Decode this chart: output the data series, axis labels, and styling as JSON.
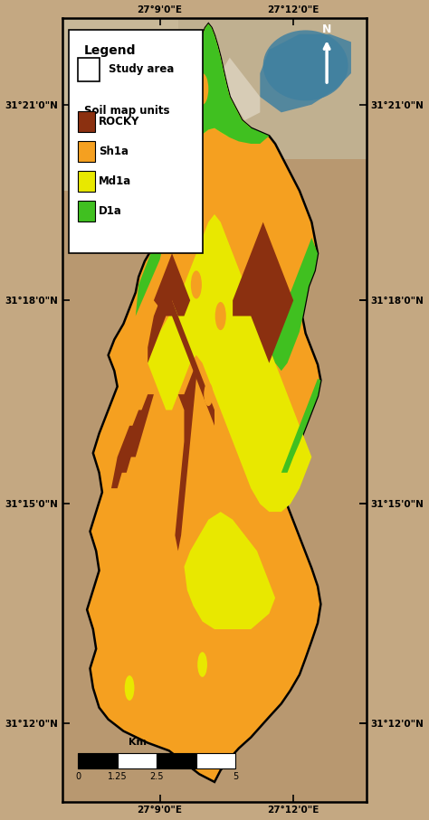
{
  "background_color": "#c4a882",
  "colors": {
    "rocky": "#8B3010",
    "sh1a": "#F5A020",
    "md1a": "#E8E800",
    "d1a": "#40C020",
    "terrain_dark": "#b09070",
    "terrain_mid": "#c8b090",
    "terrain_light": "#d8c8a8",
    "water": "#4080a0"
  },
  "x_ticks_top": [
    "27°9'0\"E",
    "27°12'0\"E"
  ],
  "x_ticks_bot": [
    "27°9'0\"E",
    "27°12'0\"E"
  ],
  "y_ticks_left": [
    "31°21'0\"N",
    "31°18'0\"N",
    "31°15'0\"N",
    "31°12'0\"N"
  ],
  "y_ticks_right": [
    "31°21'0\"N",
    "31°18'0\"N",
    "31°15'0\"N",
    "31°12'0\"N"
  ],
  "legend_title": "Legend",
  "scalebar_unit": "Km",
  "scalebar_labels": [
    "0",
    "1.25",
    "2.5",
    "5"
  ]
}
